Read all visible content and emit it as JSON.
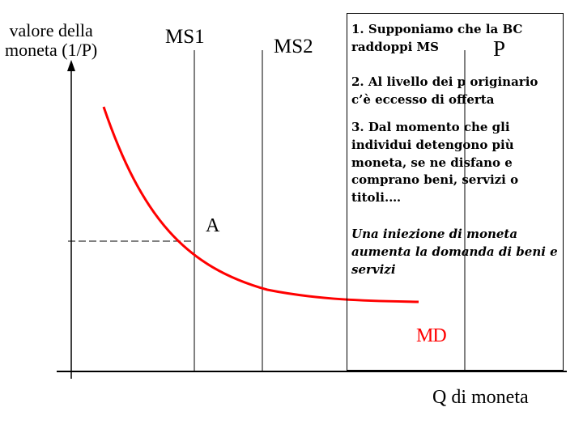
{
  "axes": {
    "y_label_line1": "valore della",
    "y_label_line2": "moneta (1/P)",
    "x_label": "Q di moneta"
  },
  "curves": {
    "ms1_label": "MS1",
    "ms2_label": "MS2",
    "md_label": "MD",
    "md_color": "#ff0000"
  },
  "points": {
    "a_label": "A",
    "p_label": "P"
  },
  "notes": {
    "note1": "1. Supponiamo che la BC raddoppi MS",
    "note2": "2. Al livello dei p originario c’è eccesso di offerta",
    "note3": "3. Dal momento che gli individui detengono più moneta, se ne disfano e comprano beni, servizi o titoli.…",
    "note4": "Una iniezione di moneta aumenta la domanda di beni e servizi"
  }
}
